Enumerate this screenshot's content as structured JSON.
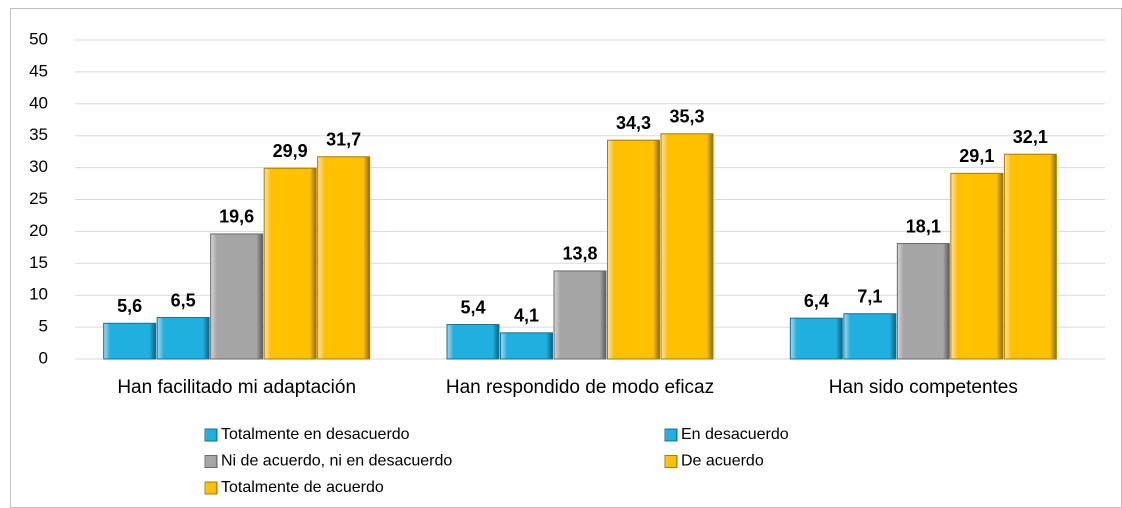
{
  "chart_data": {
    "type": "bar",
    "categories": [
      "Han facilitado mi adaptación",
      "Han respondido de modo eficaz",
      "Han sido competentes"
    ],
    "series": [
      {
        "name": "Totalmente en desacuerdo",
        "color": "#1fb0e0",
        "values": [
          5.6,
          5.4,
          6.4
        ],
        "value_labels": [
          "5,6",
          "5,4",
          "6,4"
        ]
      },
      {
        "name": "En desacuerdo",
        "color": "#1fb0e0",
        "values": [
          6.5,
          4.1,
          7.1
        ],
        "value_labels": [
          "6,5",
          "4,1",
          "7,1"
        ]
      },
      {
        "name": "Ni de acuerdo, ni en desacuerdo",
        "color": "#a5a5a5",
        "values": [
          19.6,
          13.8,
          18.1
        ],
        "value_labels": [
          "19,6",
          "13,8",
          "18,1"
        ]
      },
      {
        "name": "De acuerdo",
        "color": "#ffc000",
        "values": [
          29.9,
          34.3,
          29.1
        ],
        "value_labels": [
          "29,9",
          "34,3",
          "29,1"
        ]
      },
      {
        "name": "Totalmente de acuerdo",
        "color": "#ffc000",
        "values": [
          31.7,
          35.3,
          32.1
        ],
        "value_labels": [
          "31,7",
          "35,3",
          "32,1"
        ]
      }
    ],
    "ylim": [
      0,
      50
    ],
    "yticks": [
      0,
      5,
      10,
      15,
      20,
      25,
      30,
      35,
      40,
      45,
      50
    ],
    "grid": true,
    "legend": "bottom"
  }
}
